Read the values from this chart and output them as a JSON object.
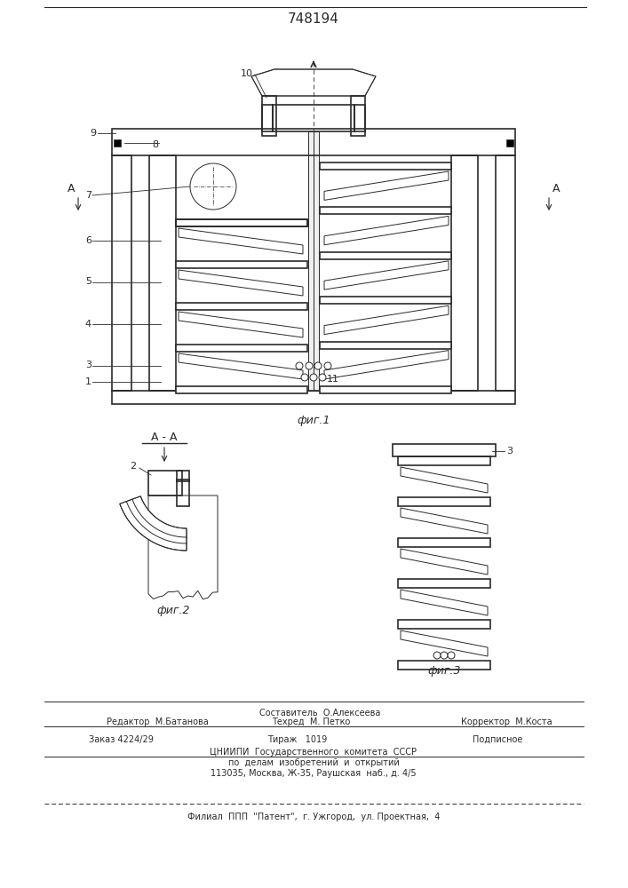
{
  "title": "748194",
  "fig_labels": [
    "фиг.1",
    "фиг.2",
    "фиг.3"
  ],
  "section_label": "A - A",
  "line_color": "#2a2a2a",
  "footer_lines": [
    "Составитель  О.Алексеева",
    "Редактор  М.Батанова",
    "Техред  М. Петко",
    "Корректор  М.Коста",
    "Заказ 4224/29",
    "Тираж   1019",
    "Подписное",
    "ЦНИИПИ  Государственного  комитета  СССР",
    "по  делам  изобретений  и  открытий",
    "113035, Москва, Ж-35, Раушская  наб., д. 4/5",
    "Филиал  ППП  \"Патент\",  г. Ужгород,  ул. Проектная,  4"
  ]
}
